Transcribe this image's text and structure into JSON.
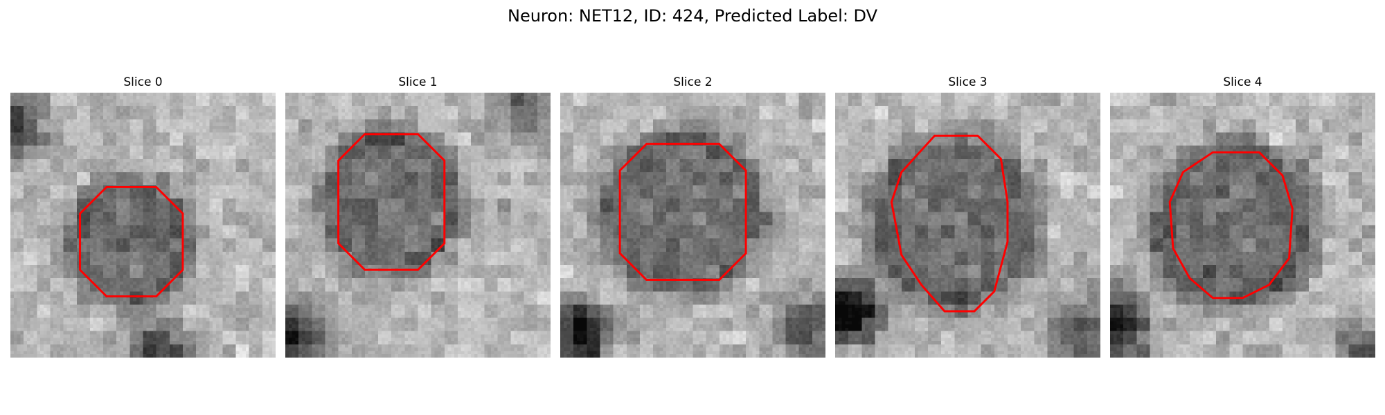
{
  "figure": {
    "title": "Neuron: NET12, ID: 424, Predicted Label: DV"
  },
  "panels": [
    {
      "title": "Slice 0",
      "contour_color": "#ff0000",
      "contour": [
        [
          29,
          28.5
        ],
        [
          44,
          28.5
        ],
        [
          52,
          36.5
        ],
        [
          52,
          53.5
        ],
        [
          44,
          61.5
        ],
        [
          29,
          61.5
        ],
        [
          21,
          53.5
        ],
        [
          21,
          36.5
        ]
      ]
    },
    {
      "title": "Slice 1",
      "contour_color": "#ff0000",
      "contour": [
        [
          24,
          12.5
        ],
        [
          40,
          12.5
        ],
        [
          48,
          20.5
        ],
        [
          48,
          45.5
        ],
        [
          40,
          53.5
        ],
        [
          24,
          53.5
        ],
        [
          16,
          45.5
        ],
        [
          16,
          20.5
        ]
      ]
    },
    {
      "title": "Slice 2",
      "contour_color": "#ff0000",
      "contour": [
        [
          26,
          15.5
        ],
        [
          48,
          15.5
        ],
        [
          56,
          23.5
        ],
        [
          56,
          48.5
        ],
        [
          48,
          56.5
        ],
        [
          26,
          56.5
        ],
        [
          18,
          48.5
        ],
        [
          18,
          23.5
        ]
      ]
    },
    {
      "title": "Slice 3",
      "contour_color": "#ff0000",
      "contour": [
        [
          30,
          13
        ],
        [
          43,
          13
        ],
        [
          50,
          20
        ],
        [
          52,
          33
        ],
        [
          52,
          45
        ],
        [
          48,
          60
        ],
        [
          42,
          66
        ],
        [
          33,
          66
        ],
        [
          26,
          58
        ],
        [
          20,
          49
        ],
        [
          17,
          33
        ],
        [
          20,
          24
        ]
      ]
    },
    {
      "title": "Slice 4",
      "contour_color": "#ff0000",
      "contour": [
        [
          31,
          18
        ],
        [
          45,
          18
        ],
        [
          52,
          25
        ],
        [
          55,
          35
        ],
        [
          54,
          50
        ],
        [
          48,
          58
        ],
        [
          40,
          62
        ],
        [
          31,
          62
        ],
        [
          24,
          56
        ],
        [
          19,
          47
        ],
        [
          18,
          33
        ],
        [
          22,
          24
        ]
      ]
    }
  ]
}
